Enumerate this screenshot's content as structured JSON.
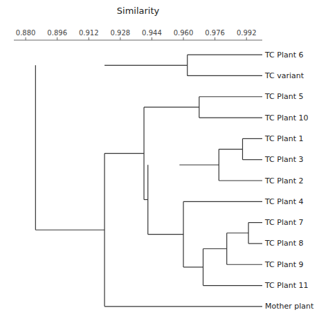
{
  "chart_data": {
    "type": "dendrogram",
    "x_label": "Similarity",
    "tree": {
      "height": 0.885,
      "children": [
        {
          "height": 0.962,
          "stem": 0.92,
          "children": [
            "TC Plant 6",
            "TC variant"
          ]
        },
        {
          "height": 0.92,
          "children": [
            {
              "height": 0.94,
              "stem": 0.92,
              "children": [
                {
                  "height": 0.968,
                  "stem": 0.94,
                  "children": [
                    "TC Plant 5",
                    "TC Plant 10"
                  ]
                },
                {
                  "height": 0.942,
                  "stem": 0.94,
                  "children": [
                    {
                      "height": 0.978,
                      "stem": 0.958,
                      "children": [
                        {
                          "height": 0.99,
                          "stem": 0.978,
                          "children": [
                            "TC Plant 1",
                            "TC Plant 3"
                          ]
                        },
                        "TC Plant 2"
                      ]
                    },
                    {
                      "height": 0.96,
                      "stem": 0.942,
                      "children": [
                        "TC Plant 4",
                        {
                          "height": 0.97,
                          "stem": 0.96,
                          "children": [
                            {
                              "height": 0.982,
                              "stem": 0.97,
                              "children": [
                                {
                                  "height": 0.993,
                                  "stem": 0.982,
                                  "children": [
                                    "TC Plant 7",
                                    "TC Plant 8"
                                  ]
                                },
                                "TC Plant 9"
                              ]
                            },
                            "TC Plant 11"
                          ]
                        }
                      ]
                    }
                  ]
                }
              ]
            },
            "Mother plant"
          ]
        }
      ]
    },
    "xlim": [
      0.874,
      1.0
    ],
    "xticks": [
      {
        "value": 0.88,
        "label": "0.880"
      },
      {
        "value": 0.896,
        "label": "0.896"
      },
      {
        "value": 0.912,
        "label": "0.912"
      },
      {
        "value": 0.928,
        "label": "0.928"
      },
      {
        "value": 0.944,
        "label": "0.944"
      },
      {
        "value": 0.96,
        "label": "0.960"
      },
      {
        "value": 0.976,
        "label": "0.976"
      },
      {
        "value": 0.992,
        "label": "0.992"
      }
    ]
  }
}
